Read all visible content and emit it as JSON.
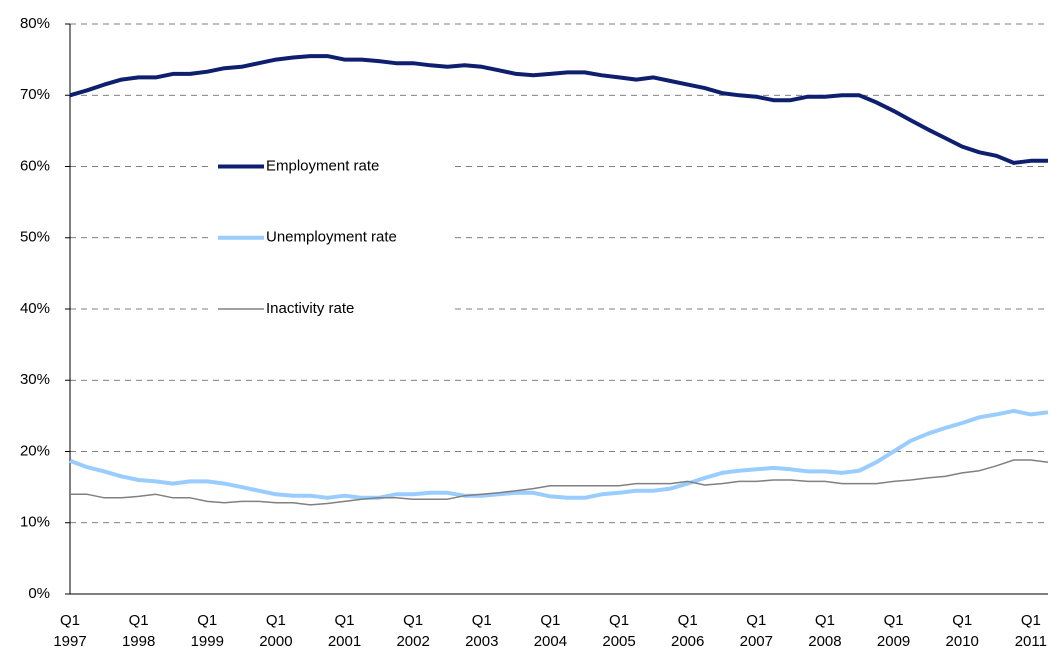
{
  "chart_data": {
    "type": "line",
    "categories": [
      "Q1 1997",
      null,
      null,
      null,
      "Q1 1998",
      null,
      null,
      null,
      "Q1 1999",
      null,
      null,
      null,
      "Q1 2000",
      null,
      null,
      null,
      "Q1 2001",
      null,
      null,
      null,
      "Q1 2002",
      null,
      null,
      null,
      "Q1 2003",
      null,
      null,
      null,
      "Q1 2004",
      null,
      null,
      null,
      "Q1 2005",
      null,
      null,
      null,
      "Q1 2006",
      null,
      null,
      null,
      "Q1 2007",
      null,
      null,
      null,
      "Q1 2008",
      null,
      null,
      null,
      "Q1 2009",
      null,
      null,
      null,
      "Q1 2010",
      null,
      null,
      null,
      "Q1 2011",
      null
    ],
    "series": [
      {
        "name": "Employment rate",
        "color": "#0d1f6e",
        "values": [
          70.0,
          70.7,
          71.5,
          72.2,
          72.5,
          72.5,
          73.0,
          73.0,
          73.3,
          73.8,
          74.0,
          74.5,
          75.0,
          75.3,
          75.5,
          75.5,
          75.0,
          75.0,
          74.8,
          74.5,
          74.5,
          74.2,
          74.0,
          74.2,
          74.0,
          73.5,
          73.0,
          72.8,
          73.0,
          73.2,
          73.2,
          72.8,
          72.5,
          72.2,
          72.5,
          72.0,
          71.5,
          71.0,
          70.3,
          70.0,
          69.8,
          69.3,
          69.3,
          69.8,
          69.8,
          70.0,
          70.0,
          69.0,
          67.8,
          66.5,
          65.2,
          64.0,
          62.8,
          62.0,
          61.5,
          60.5,
          60.8,
          60.8
        ]
      },
      {
        "name": "Unemployment rate",
        "color": "#99ccff",
        "values": [
          18.7,
          17.8,
          17.2,
          16.5,
          16.0,
          15.8,
          15.5,
          15.8,
          15.8,
          15.5,
          15.0,
          14.5,
          14.0,
          13.8,
          13.8,
          13.5,
          13.8,
          13.5,
          13.5,
          14.0,
          14.0,
          14.2,
          14.2,
          13.8,
          13.8,
          14.0,
          14.2,
          14.2,
          13.7,
          13.5,
          13.5,
          14.0,
          14.2,
          14.5,
          14.5,
          14.8,
          15.5,
          16.3,
          17.0,
          17.3,
          17.5,
          17.7,
          17.5,
          17.2,
          17.2,
          17.0,
          17.3,
          18.5,
          20.0,
          21.5,
          22.5,
          23.3,
          24.0,
          24.8,
          25.2,
          25.7,
          25.2,
          25.5
        ]
      },
      {
        "name": "Inactivity rate",
        "color": "#808080",
        "values": [
          14.0,
          14.0,
          13.5,
          13.5,
          13.7,
          14.0,
          13.5,
          13.5,
          13.0,
          12.8,
          13.0,
          13.0,
          12.8,
          12.8,
          12.5,
          12.7,
          13.0,
          13.3,
          13.5,
          13.5,
          13.3,
          13.3,
          13.3,
          13.8,
          14.0,
          14.2,
          14.5,
          14.8,
          15.2,
          15.2,
          15.2,
          15.2,
          15.2,
          15.5,
          15.5,
          15.5,
          15.8,
          15.3,
          15.5,
          15.8,
          15.8,
          16.0,
          16.0,
          15.8,
          15.8,
          15.5,
          15.5,
          15.5,
          15.8,
          16.0,
          16.3,
          16.5,
          17.0,
          17.3,
          18.0,
          18.8,
          18.8,
          18.5
        ]
      }
    ],
    "ylim": [
      0,
      80
    ],
    "yticks": [
      {
        "value": 0,
        "label": "0%"
      },
      {
        "value": 10,
        "label": "10%"
      },
      {
        "value": 20,
        "label": "20%"
      },
      {
        "value": 30,
        "label": "30%"
      },
      {
        "value": 40,
        "label": "40%"
      },
      {
        "value": 50,
        "label": "50%"
      },
      {
        "value": 60,
        "label": "60%"
      },
      {
        "value": 70,
        "label": "70%"
      },
      {
        "value": 80,
        "label": "80%"
      }
    ],
    "grid": true,
    "legend": "left"
  }
}
